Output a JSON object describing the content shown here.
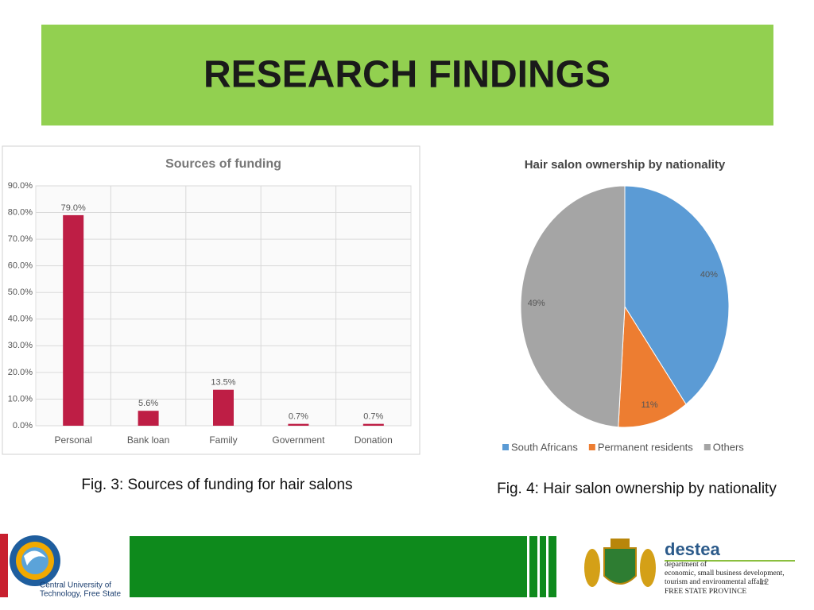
{
  "slide": {
    "title": "RESEARCH FINDINGS",
    "captions": [
      "Fig. 3: Sources of funding for hair salons",
      "Fig. 4: Hair salon ownership by nationality"
    ],
    "page_number": "12"
  },
  "chart_data": [
    {
      "type": "bar",
      "title": "Sources of funding",
      "categories": [
        "Personal",
        "Bank loan",
        "Family",
        "Government",
        "Donation"
      ],
      "values": [
        79.0,
        5.6,
        13.5,
        0.7,
        0.7
      ],
      "value_labels": [
        "79.0%",
        "5.6%",
        "13.5%",
        "0.7%",
        "0.7%"
      ],
      "color": "#be1e45",
      "ylim": [
        0,
        90
      ],
      "yticks": [
        {
          "value": 0,
          "label": "0.0%"
        },
        {
          "value": 10,
          "label": "10.0%"
        },
        {
          "value": 20,
          "label": "20.0%"
        },
        {
          "value": 30,
          "label": "30.0%"
        },
        {
          "value": 40,
          "label": "40.0%"
        },
        {
          "value": 50,
          "label": "50.0%"
        },
        {
          "value": 60,
          "label": "60.0%"
        },
        {
          "value": 70,
          "label": "70.0%"
        },
        {
          "value": 80,
          "label": "80.0%"
        },
        {
          "value": 90,
          "label": "90.0%"
        }
      ],
      "grid": true
    },
    {
      "type": "pie",
      "title": "Hair salon ownership by nationality",
      "categories": [
        "South Africans",
        "Permanent residents",
        "Others"
      ],
      "values": [
        40,
        11,
        49
      ],
      "value_labels": [
        "40%",
        "11%",
        "49%"
      ],
      "colors": [
        "#5b9bd5",
        "#ed7d31",
        "#a5a5a5"
      ],
      "legend": "bottom"
    }
  ],
  "footer": {
    "left_logo": [
      "Central University of",
      "Technology, Free State"
    ],
    "right_logo": {
      "name": "destea",
      "lines": [
        "department of",
        "economic, small business development,",
        "tourism and environmental affairs",
        "FREE STATE PROVINCE"
      ]
    }
  }
}
